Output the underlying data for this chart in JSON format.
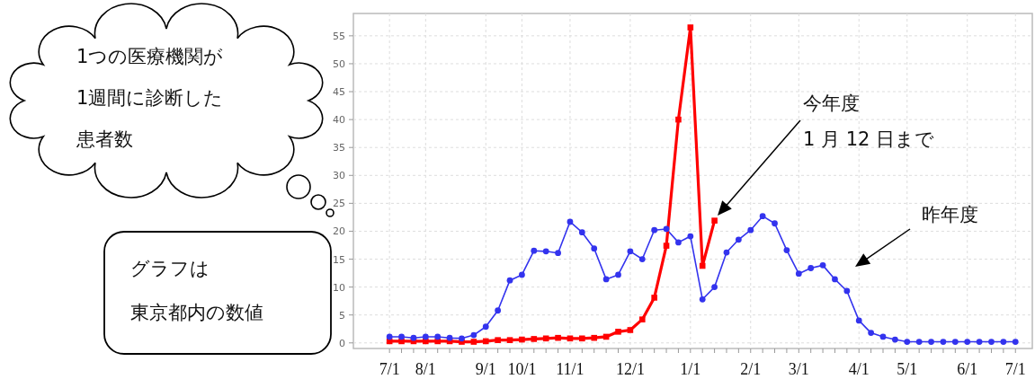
{
  "chart_data": {
    "type": "line",
    "categories": [
      "7/1",
      null,
      null,
      "8/1",
      null,
      null,
      null,
      null,
      "9/1",
      null,
      null,
      "10/1",
      null,
      null,
      null,
      "11/1",
      null,
      null,
      null,
      null,
      "12/1",
      null,
      null,
      null,
      null,
      "1/1",
      null,
      null,
      null,
      null,
      "2/1",
      null,
      null,
      null,
      "3/1",
      null,
      null,
      null,
      null,
      "4/1",
      null,
      null,
      null,
      "5/1",
      null,
      null,
      null,
      null,
      "6/1",
      null,
      null,
      null,
      "7/1"
    ],
    "ylim": [
      -1,
      59
    ],
    "yticks": [
      0,
      5,
      10,
      15,
      20,
      25,
      30,
      35,
      40,
      45,
      50,
      55
    ],
    "grid": true,
    "line_style": "solid",
    "series": [
      {
        "color": "#3333ee",
        "marker": "circle",
        "values": [
          1.1,
          1.1,
          0.9,
          1.1,
          1.1,
          0.9,
          0.8,
          1.4,
          2.9,
          5.8,
          11.2,
          12.2,
          16.5,
          16.4,
          16.1,
          21.7,
          19.8,
          16.9,
          11.4,
          12.2,
          16.4,
          15.0,
          20.2,
          20.4,
          18.0,
          19.1,
          7.8,
          10.0,
          16.2,
          18.5,
          20.2,
          22.7,
          21.4,
          16.6,
          12.4,
          13.4,
          13.9,
          11.4,
          9.3,
          4.0,
          1.8,
          1.1,
          0.6,
          0.2,
          0.2,
          0.2,
          0.2,
          0.2,
          0.2,
          0.2,
          0.2,
          0.2,
          0.2
        ]
      },
      {
        "color": "#ff0000",
        "marker": "square",
        "values": [
          0.3,
          0.3,
          0.3,
          0.3,
          0.3,
          0.3,
          0.2,
          0.2,
          0.3,
          0.5,
          0.5,
          0.6,
          0.7,
          0.8,
          0.9,
          0.8,
          0.8,
          0.9,
          1.1,
          2.0,
          2.3,
          4.2,
          8.1,
          17.4,
          40.0,
          56.5,
          13.8,
          21.9,
          null,
          null,
          null,
          null,
          null,
          null,
          null,
          null,
          null,
          null,
          null,
          null,
          null,
          null,
          null,
          null,
          null,
          null,
          null,
          null,
          null,
          null,
          null,
          null,
          null
        ]
      }
    ],
    "annotations": [
      "1つの医療機関が",
      "1週間に診断した",
      "患者数",
      "グラフは",
      "東京都内の数値",
      "今年度\n1 月 12 日まで",
      "昨年度"
    ]
  }
}
